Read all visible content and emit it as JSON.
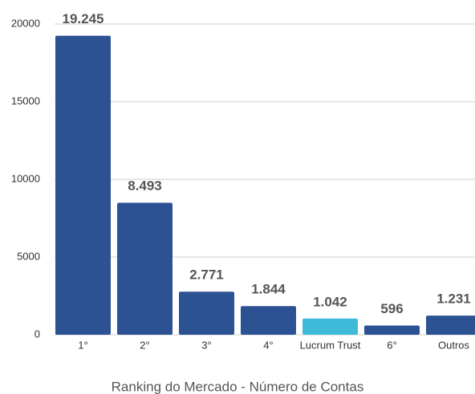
{
  "chart_data": {
    "type": "bar",
    "title": "Ranking do Mercado - Número de Contas",
    "categories": [
      "1°",
      "2°",
      "3°",
      "4°",
      "Lucrum Trust",
      "6°",
      "Outros"
    ],
    "values": [
      19245,
      8493,
      2771,
      1844,
      1042,
      596,
      1231
    ],
    "value_labels": [
      "19.245",
      "8.493",
      "2.771",
      "1.844",
      "1.042",
      "596",
      "1.231"
    ],
    "colors": [
      "#2c5293",
      "#2c5293",
      "#2c5293",
      "#2c5293",
      "#3fbad9",
      "#2c5293",
      "#2c5293"
    ],
    "ylim": [
      0,
      20000
    ],
    "yticks": [
      0,
      5000,
      10000,
      15000,
      20000
    ],
    "grid": true
  }
}
